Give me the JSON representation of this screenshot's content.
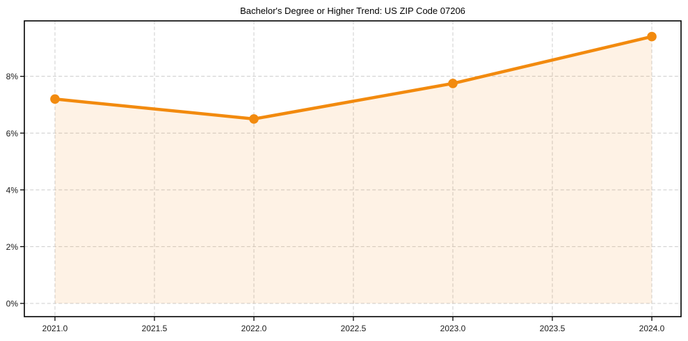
{
  "chart_data": {
    "type": "line",
    "title": "Bachelor's Degree or Higher Trend: US ZIP Code 07206",
    "xlabel": "",
    "ylabel": "",
    "x": [
      2021,
      2022,
      2023,
      2024
    ],
    "values": [
      7.2,
      6.5,
      7.75,
      9.4
    ],
    "x_ticks": [
      2021.0,
      2021.5,
      2022.0,
      2022.5,
      2023.0,
      2023.5,
      2024.0
    ],
    "x_tick_labels": [
      "2021.0",
      "2021.5",
      "2022.0",
      "2022.5",
      "2023.0",
      "2023.5",
      "2024.0"
    ],
    "y_ticks": [
      0,
      2,
      4,
      6,
      8
    ],
    "y_tick_labels": [
      "0%",
      "2%",
      "4%",
      "6%",
      "8%"
    ],
    "xlim": [
      2020.85,
      2024.15
    ],
    "ylim": [
      -0.47,
      9.95
    ],
    "grid": "dashed-both",
    "legend": "none",
    "marker": "circle",
    "area_fill_to": 0,
    "colors": {
      "line": "#f28a0e",
      "marker": "#f28a0e",
      "area_fill": "#f28a0e",
      "area_fill_opacity": "0.11",
      "gridline": "#cccccc",
      "spine": "#000000",
      "tick_text": "#1a1a1a",
      "title_text": "#000000",
      "background": "#ffffff"
    }
  }
}
